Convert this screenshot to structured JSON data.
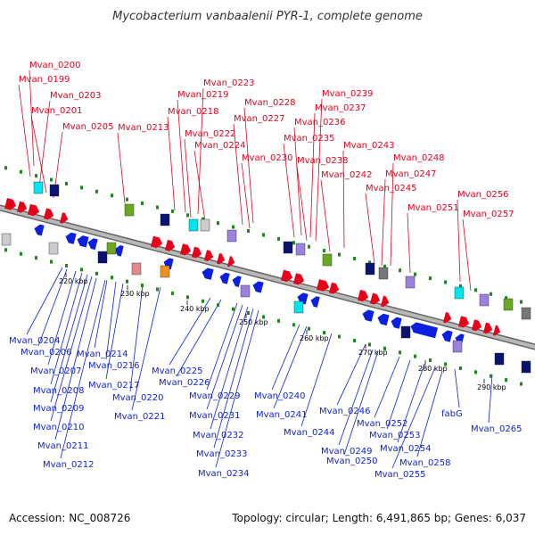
{
  "title": "Mycobacterium vanbaalenii PYR-1, complete genome",
  "footer": {
    "accession": "Accession: NC_008726",
    "summary": "Topology: circular; Length: 6,491,865 bp; Genes: 6,037"
  },
  "colors": {
    "forward": "#e8001a",
    "reverse": "#0a1fe0",
    "backbone": "#8a8a8a",
    "tick_dot": "#1a8a1a"
  },
  "kbp_labels": [
    "220 kbp",
    "230 kbp",
    "240 kbp",
    "250 kbp",
    "260 kbp",
    "270 kbp",
    "280 kbp",
    "290 kbp"
  ],
  "forward_genes": [
    "Mvan_0200",
    "Mvan_0199",
    "Mvan_0203",
    "Mvan_0201",
    "Mvan_0205",
    "Mvan_0213",
    "Mvan_0223",
    "Mvan_0219",
    "Mvan_0218",
    "Mvan_0222",
    "Mvan_0224",
    "Mvan_0228",
    "Mvan_0227",
    "Mvan_0230",
    "Mvan_0239",
    "Mvan_0237",
    "Mvan_0236",
    "Mvan_0235",
    "Mvan_0238",
    "Mvan_0243",
    "Mvan_0242",
    "Mvan_0248",
    "Mvan_0247",
    "Mvan_0245",
    "Mvan_0251",
    "Mvan_0256",
    "Mvan_0257"
  ],
  "reverse_genes": [
    "Mvan_0204",
    "Mvan_0206",
    "Mvan_0207",
    "Mvan_0208",
    "Mvan_0209",
    "Mvan_0210",
    "Mvan_0211",
    "Mvan_0212",
    "Mvan_0214",
    "Mvan_0216",
    "Mvan_0217",
    "Mvan_0220",
    "Mvan_0221",
    "Mvan_0225",
    "Mvan_0226",
    "Mvan_0229",
    "Mvan_0231",
    "Mvan_0232",
    "Mvan_0233",
    "Mvan_0234",
    "Mvan_0240",
    "Mvan_0241",
    "Mvan_0244",
    "Mvan_0246",
    "Mvan_0249",
    "Mvan_0250",
    "Mvan_0252",
    "Mvan_0253",
    "Mvan_0254",
    "Mvan_0255",
    "Mvan_0258",
    "fabG",
    "Mvan_0265"
  ]
}
